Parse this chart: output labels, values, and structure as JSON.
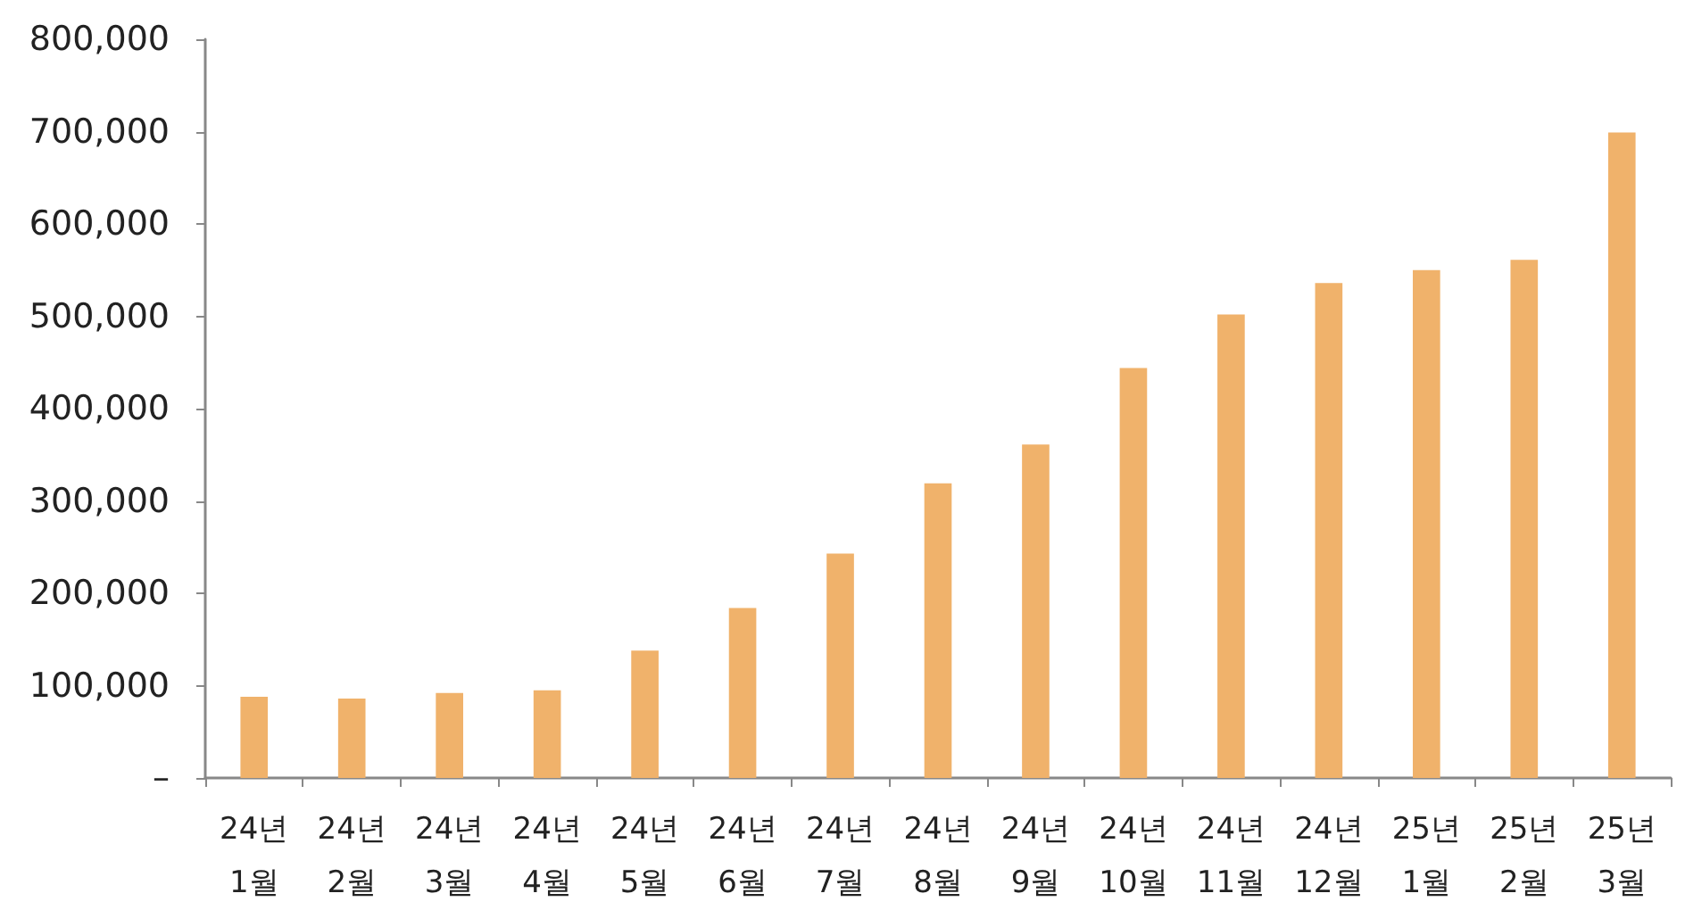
{
  "chart_data": {
    "type": "bar",
    "categories": [
      "24년\n1월",
      "24년\n2월",
      "24년\n3월",
      "24년\n4월",
      "24년\n5월",
      "24년\n6월",
      "24년\n7월",
      "24년\n8월",
      "24년\n9월",
      "24년\n10월",
      "24년\n11월",
      "24년\n12월",
      "25년\n1월",
      "25년\n2월",
      "25년\n3월"
    ],
    "values": [
      88000,
      86000,
      92000,
      95000,
      138000,
      184000,
      243000,
      319000,
      361000,
      444000,
      502000,
      536000,
      550000,
      561000,
      699000
    ],
    "color": "#f0b26b",
    "ylim": [
      0,
      800000
    ],
    "yticks": [
      {
        "value": 0,
        "label": "–"
      },
      {
        "value": 100000,
        "label": "100,000"
      },
      {
        "value": 200000,
        "label": "200,000"
      },
      {
        "value": 300000,
        "label": "300,000"
      },
      {
        "value": 400000,
        "label": "400,000"
      },
      {
        "value": 500000,
        "label": "500,000"
      },
      {
        "value": 600000,
        "label": "600,000"
      },
      {
        "value": 700000,
        "label": "700,000"
      },
      {
        "value": 800000,
        "label": "800,000"
      }
    ],
    "grid": false
  }
}
